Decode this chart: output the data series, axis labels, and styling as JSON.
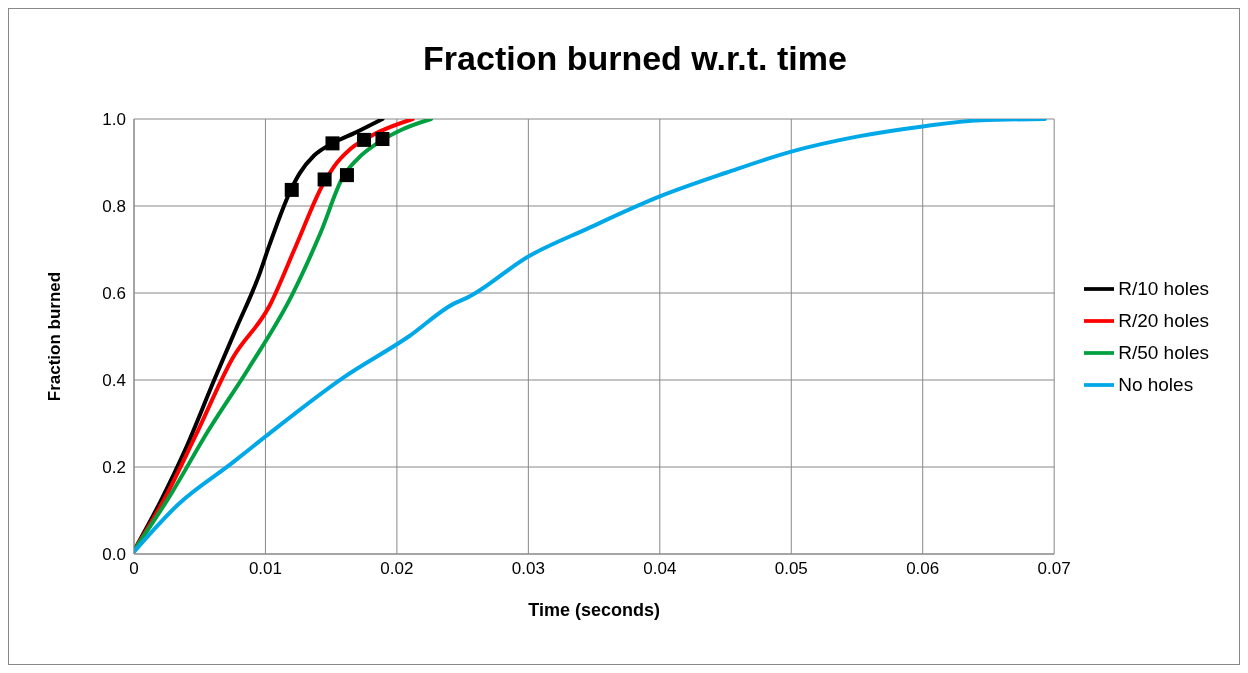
{
  "chart_data": {
    "type": "line",
    "title": "Fraction burned w.r.t. time",
    "xlabel": "Time (seconds)",
    "ylabel": "Fraction burned",
    "xlim": [
      0,
      0.07
    ],
    "xticks": [
      0,
      0.01,
      0.02,
      0.03,
      0.04,
      0.05,
      0.06,
      0.07
    ],
    "ylim": [
      0,
      1
    ],
    "yticks": [
      {
        "value": 0,
        "label": "0.0"
      },
      {
        "value": 0.2,
        "label": "0.2"
      },
      {
        "value": 0.4,
        "label": "0.4"
      },
      {
        "value": 0.6,
        "label": "0.6"
      },
      {
        "value": 0.8,
        "label": "0.8"
      },
      {
        "value": 1,
        "label": "1.0"
      }
    ],
    "grid": true,
    "legend": "right",
    "marker": "none",
    "line_style": "solid",
    "series": [
      {
        "name": "R/10 holes",
        "color": "#000000",
        "x": [
          0,
          0.002,
          0.0039,
          0.0061,
          0.0078,
          0.0095,
          0.0103,
          0.0119,
          0.0126,
          0.0137,
          0.0151,
          0.0168,
          0.0189
        ],
        "values": [
          0.008,
          0.12,
          0.24,
          0.4,
          0.52,
          0.64,
          0.71,
          0.835,
          0.875,
          0.916,
          0.944,
          0.968,
          1.0
        ]
      },
      {
        "name": "R/20 holes",
        "color": "#ff0000",
        "x": [
          0,
          0.0025,
          0.0047,
          0.0075,
          0.0103,
          0.0123,
          0.0144,
          0.0152,
          0.0165,
          0.0182,
          0.0212
        ],
        "values": [
          0.008,
          0.137,
          0.273,
          0.45,
          0.57,
          0.707,
          0.851,
          0.89,
          0.932,
          0.964,
          1.0
        ]
      },
      {
        "name": "R/50 holes",
        "color": "#00a040",
        "x": [
          0,
          0.0028,
          0.0056,
          0.0087,
          0.012,
          0.0142,
          0.0159,
          0.017,
          0.0187,
          0.0204,
          0.0226
        ],
        "values": [
          0.008,
          0.137,
          0.281,
          0.426,
          0.594,
          0.739,
          0.867,
          0.908,
          0.948,
          0.976,
          1.0
        ]
      },
      {
        "name": "No holes",
        "color": "#00a8e8",
        "x": [
          0,
          0.0034,
          0.0075,
          0.01,
          0.0159,
          0.0209,
          0.0243,
          0.0254,
          0.03,
          0.0345,
          0.04,
          0.0451,
          0.05,
          0.0551,
          0.06,
          0.0644,
          0.0693
        ],
        "values": [
          0.005,
          0.115,
          0.21,
          0.27,
          0.405,
          0.5,
          0.575,
          0.59,
          0.684,
          0.748,
          0.822,
          0.877,
          0.925,
          0.96,
          0.983,
          0.997,
          1.0
        ]
      },
      {
        "type": "scatter",
        "color": "#000000",
        "marker": "square",
        "x": [
          0.012,
          0.0151,
          0.0145,
          0.0162,
          0.0175,
          0.0189
        ],
        "values": [
          0.837,
          0.944,
          0.861,
          0.871,
          0.952,
          0.954
        ]
      }
    ]
  }
}
